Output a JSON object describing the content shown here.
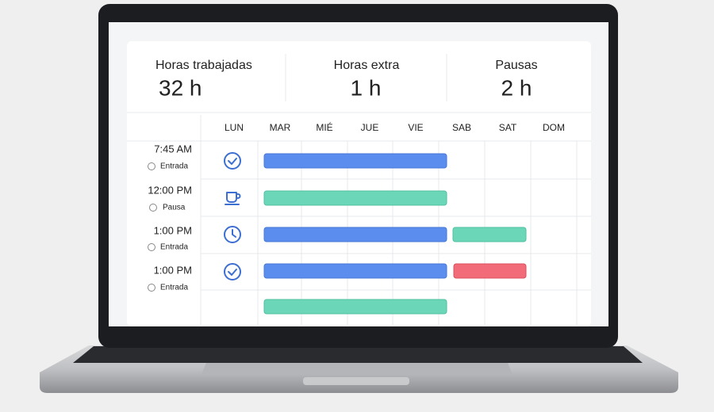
{
  "stats": [
    {
      "label": "Horas trabajadas",
      "value": "32 h"
    },
    {
      "label": "Horas extra",
      "value": "1 h"
    },
    {
      "label": "Pausas",
      "value": "2 h"
    }
  ],
  "days": [
    "LUN",
    "MAR",
    "MIÉ",
    "JUE",
    "VIE",
    "SAB",
    "SAT",
    "DOM"
  ],
  "rows": [
    {
      "time": "7:45 AM",
      "status": "Entrada"
    },
    {
      "time": "12:00 PM",
      "status": "Pausa"
    },
    {
      "time": "1:00 PM",
      "status": "Entrada"
    },
    {
      "time": "1:00 PM",
      "status": "Entrada"
    }
  ]
}
